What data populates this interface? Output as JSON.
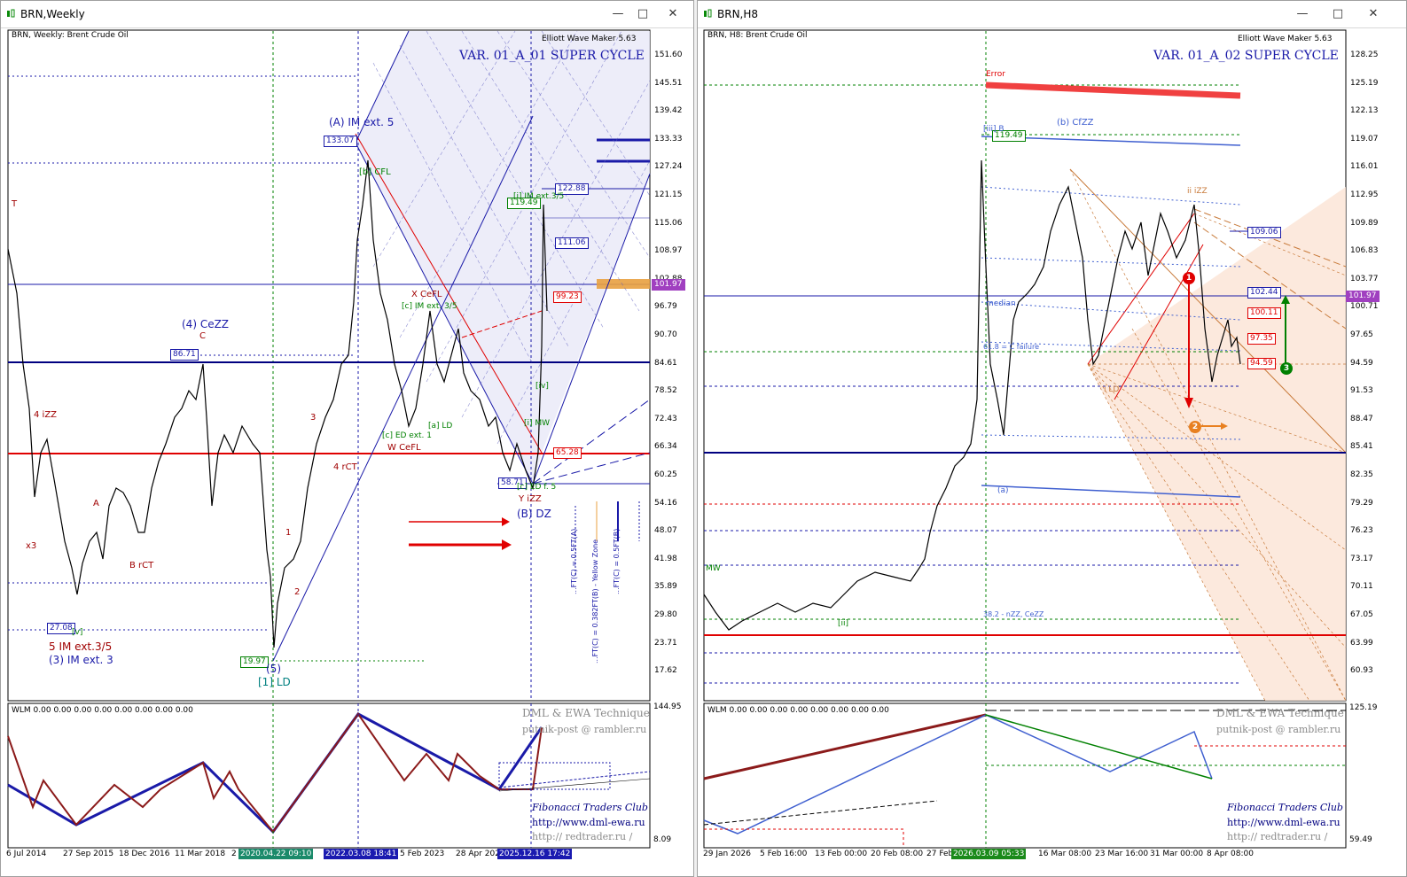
{
  "left": {
    "title": "BRN,Weekly",
    "header": "BRN, Weekly:  Brent Crude Oil",
    "ewm": "Elliott Wave Maker 5.63",
    "variant": "VAR. 01_A_01 SUPER CYCLE",
    "price_axis": [
      "151.60",
      "145.51",
      "139.42",
      "133.33",
      "127.24",
      "121.15",
      "115.06",
      "108.97",
      "102.88",
      "96.79",
      "90.70",
      "84.61",
      "78.52",
      "72.43",
      "66.34",
      "60.25",
      "54.16",
      "48.07",
      "41.98",
      "35.89",
      "29.80",
      "23.71",
      "17.62"
    ],
    "current_price": "101.97",
    "price_tags": {
      "p133": "133.07",
      "p122": "122.88",
      "p119": "119.49",
      "p111": "111.06",
      "p99": "99.23",
      "p86": "86.71",
      "p65": "65.28",
      "p58": "58.71",
      "p27": "27.08",
      "p19": "19.97"
    },
    "time_axis": [
      "6 Jul 2014",
      "27 Sep 2015",
      "18 Dec 2016",
      "11 Mar 2018",
      "2",
      "2020.04.22 09:10",
      "2022.03.08 18:41",
      "5 Feb 2023",
      "28 Apr 202",
      "2025.12.16 17:42"
    ],
    "osc_header": "WLM 0.00 0.00 0.00 0.00 0.00 0.00 0.00 0.00",
    "osc_axis": [
      "144.95",
      "8.09"
    ],
    "dml": "DML & EWA Technique",
    "mail": "putnik-post @ rambler.ru",
    "fib": "Fibonacci      Traders      Club",
    "url1": "http://www.dml-ewa.ru",
    "url2": "http://  redtrader.ru  /",
    "labels": {
      "t": "T",
      "iz4": "4 iZZ",
      "x3": "x3",
      "a": "A",
      "brct": "B rCT",
      "ce": "(4) CeZZ",
      "c": "C",
      "im5": "5 IM ext.3/5",
      "im3": "(3) IM ext. 3",
      "aim": "(A) IM ext. 5",
      "bcfl": "[b] CFL",
      "xcefl": "X CeFL",
      "cim": "[c] IM ext. 3/5",
      "wcefl": "W CeFL",
      "ced": "[c] ED ext. 1",
      "ald": "[a] LD",
      "rct": "4 rCT",
      "n3": "3",
      "n1": "1",
      "n2": "2",
      "w5": "(5)",
      "ld1": "[1] LD",
      "yizz": "Y iZZ",
      "bdz": "(B) DZ",
      "edf": "[c] ED f. 5",
      "imtop": "[i] IM ext.3/5",
      "mw": "[i] MW",
      "iv": "[iv]",
      "v1": "[v]",
      "v_ft1": "...FT(C) = 0.5FT(A)",
      "v_ft2": "...FT(C) = 0.382FT(B) - Yellow Zone",
      "v_ft3": "...FT(C) = 0.5FT(B)"
    }
  },
  "right": {
    "title": "BRN,H8",
    "header": "BRN, H8:  Brent Crude Oil",
    "ewm": "Elliott Wave Maker 5.63",
    "variant": "VAR. 01_A_02 SUPER CYCLE",
    "price_axis": [
      "128.25",
      "125.19",
      "122.13",
      "119.07",
      "116.01",
      "112.95",
      "109.89",
      "106.83",
      "103.77",
      "100.71",
      "97.65",
      "94.59",
      "91.53",
      "88.47",
      "85.41",
      "82.35",
      "79.29",
      "76.23",
      "73.17",
      "70.11",
      "67.05",
      "63.99",
      "60.93"
    ],
    "current_price": "101.97",
    "price_tags": {
      "p119": "119.49",
      "p109": "109.06",
      "p102": "102.44",
      "p100": "100.11",
      "p97": "97.35",
      "p94": "94.59"
    },
    "time_axis": [
      "29 Jan 2026",
      "5 Feb 16:00",
      "13 Feb 00:00",
      "20 Feb 08:00",
      "27 Feb",
      "2026.03.09 05:33",
      "16 Mar 08:00",
      "23 Mar 16:00",
      "31 Mar 00:00",
      "8 Apr 08:00"
    ],
    "osc_header": "WLM 0.00 0.00 0.00 0.00 0.00 0.00 0.00 0.00",
    "osc_axis": [
      "125.19",
      "59.49"
    ],
    "dml": "DML & EWA Technique",
    "mail": "putnik-post @ rambler.ru",
    "fib": "Fibonacci      Traders      Club",
    "url1": "http://www.dml-ewa.ru",
    "url2": "http://  redtrader.ru  /",
    "labels": {
      "error": "Error",
      "bcfzz": "(b) CfZZ",
      "iizz": "ii iZZ",
      "ild": "i LD",
      "a": "(a)",
      "ziii": "[iii] B",
      "mw": "MW",
      "median": "median",
      "ii": "[ii]",
      "c1": "1",
      "c2": "2",
      "c3": "3",
      "r1": "38.2 - nZZ, CeZZ",
      "fail": "61.8 = C failure"
    }
  },
  "colors": {
    "accent_blue": "#1a1aa8",
    "red": "#e00000",
    "green": "#008000",
    "brown": "#a0522d",
    "orange": "#e8a040"
  }
}
